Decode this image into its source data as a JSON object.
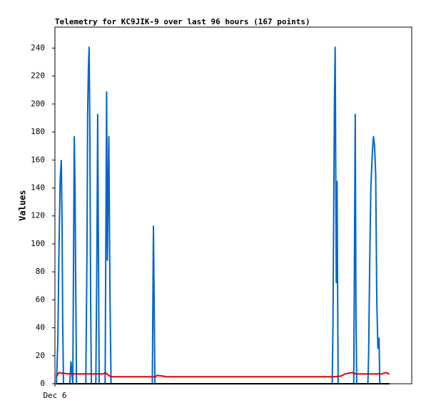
{
  "chart_data": {
    "type": "line",
    "title": "Telemetry for KC9JIK-9 over last 96 hours (167 points)",
    "y_label": "Values",
    "xlim": [
      0,
      96
    ],
    "xticks": [
      {
        "value": 0,
        "label": "Dec 6"
      }
    ],
    "ylim": [
      0,
      255
    ],
    "yticks": [
      0,
      20,
      40,
      60,
      80,
      100,
      120,
      140,
      160,
      180,
      200,
      220,
      240
    ],
    "grid": false,
    "series": [
      {
        "name": null,
        "color": "#0066cc",
        "x": [
          0.4,
          0.8,
          1.0,
          1.2,
          1.4,
          1.7,
          1.9,
          2.1,
          2.3,
          4.0,
          4.3,
          4.8,
          5.0,
          5.2,
          5.4,
          5.6,
          5.8,
          8.3,
          8.6,
          8.8,
          9.0,
          9.2,
          9.4,
          9.6,
          9.8,
          11.0,
          11.3,
          11.5,
          11.7,
          11.9,
          13.5,
          13.7,
          13.9,
          14.1,
          14.5,
          14.8,
          15.1,
          26.2,
          26.5,
          26.7,
          26.9,
          74.6,
          74.8,
          75.0,
          75.2,
          75.4,
          75.7,
          75.9,
          76.2,
          80.4,
          80.6,
          80.8,
          81.0,
          81.2,
          84.2,
          84.4,
          84.7,
          85.0,
          85.4,
          85.7,
          86.0,
          86.3,
          86.6,
          86.9,
          87.2,
          87.4
        ],
        "values": [
          0,
          33,
          80,
          113,
          145,
          160,
          120,
          40,
          0,
          0,
          16,
          0,
          88,
          177,
          140,
          68,
          0,
          0,
          88,
          193,
          225,
          241,
          180,
          60,
          0,
          0,
          97,
          193,
          97,
          0,
          0,
          105,
          209,
          88,
          177,
          65,
          0,
          0,
          113,
          56,
          0,
          0,
          40,
          120,
          200,
          241,
          72,
          145,
          0,
          0,
          97,
          193,
          48,
          0,
          0,
          20,
          88,
          140,
          165,
          177,
          170,
          150,
          60,
          25,
          33,
          0
        ]
      },
      {
        "name": null,
        "color": "#e00000",
        "x": [
          0.4,
          1.0,
          2.0,
          4,
          13,
          13.5,
          14,
          15,
          27,
          27.5,
          29,
          30,
          75,
          77,
          78,
          80,
          81,
          88,
          89,
          90
        ],
        "values": [
          5,
          8,
          7.5,
          7,
          7,
          8,
          7,
          5,
          5,
          6,
          5.5,
          5,
          5,
          5.5,
          7,
          8,
          7,
          7,
          8,
          7
        ]
      },
      {
        "name": null,
        "color": "#000000",
        "x": [
          0.4,
          90
        ],
        "values": [
          0,
          0
        ]
      }
    ]
  }
}
